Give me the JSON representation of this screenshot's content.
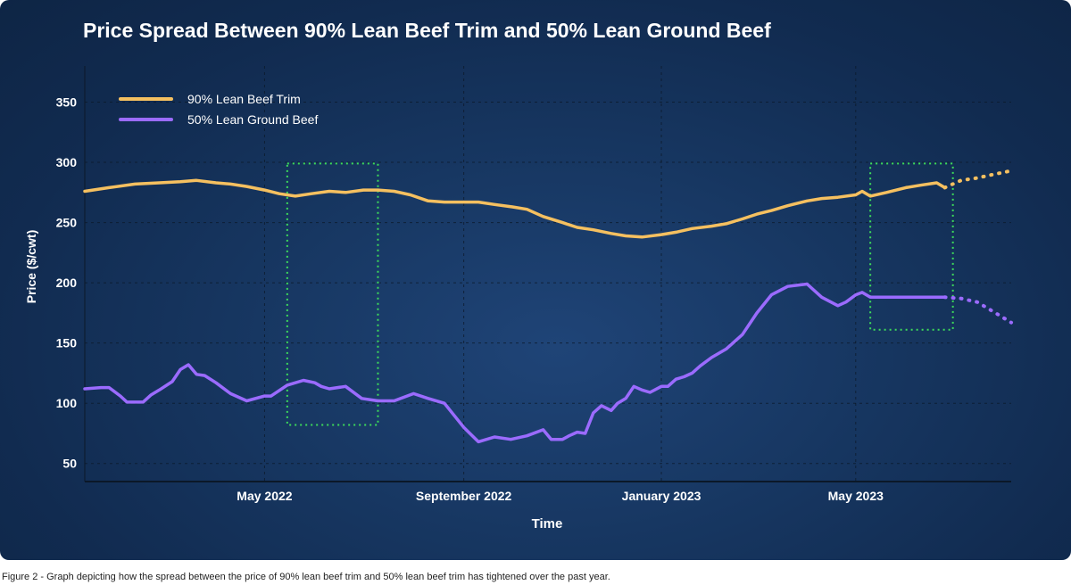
{
  "caption": "Figure 2 - Graph depicting how the spread between the price of 90% lean beef trim and 50% lean beef trim has tightened over the past year.",
  "colors": {
    "background": "#143159",
    "trim": "#f5c060",
    "ground": "#9b6bff",
    "highlight": "#3ddc5a",
    "grid": "#0d1a2c",
    "text": "#ffffff"
  },
  "chart_data": {
    "type": "line",
    "title": "Price Spread Between 90% Lean Beef Trim and 50% Lean Ground Beef",
    "xlabel": "Time",
    "ylabel": "Price ($/cwt)",
    "ylim": [
      35,
      380
    ],
    "yticks": [
      50,
      100,
      150,
      200,
      250,
      300,
      350
    ],
    "xlim": [
      "2022-01-10",
      "2023-08-05"
    ],
    "xticks": [
      {
        "date": "2022-05-01",
        "label": "May 2022"
      },
      {
        "date": "2022-09-01",
        "label": "September 2022"
      },
      {
        "date": "2023-01-01",
        "label": "January 2023"
      },
      {
        "date": "2023-05-01",
        "label": "May 2023"
      }
    ],
    "grid": true,
    "legend_position": "top-left",
    "series": [
      {
        "name": "90% Lean Beef Trim",
        "color": "#f5c060",
        "x": [
          "2022-01-10",
          "2022-01-25",
          "2022-02-10",
          "2022-02-25",
          "2022-03-10",
          "2022-03-20",
          "2022-04-01",
          "2022-04-10",
          "2022-04-20",
          "2022-05-01",
          "2022-05-10",
          "2022-05-20",
          "2022-05-30",
          "2022-06-10",
          "2022-06-20",
          "2022-07-01",
          "2022-07-10",
          "2022-07-20",
          "2022-07-30",
          "2022-08-10",
          "2022-08-20",
          "2022-08-30",
          "2022-09-10",
          "2022-09-20",
          "2022-10-01",
          "2022-10-10",
          "2022-10-20",
          "2022-11-01",
          "2022-11-10",
          "2022-11-20",
          "2022-12-01",
          "2022-12-10",
          "2022-12-20",
          "2023-01-01",
          "2023-01-10",
          "2023-01-20",
          "2023-02-01",
          "2023-02-10",
          "2023-02-20",
          "2023-03-01",
          "2023-03-10",
          "2023-03-20",
          "2023-04-01",
          "2023-04-10",
          "2023-04-20",
          "2023-05-01",
          "2023-05-05",
          "2023-05-10",
          "2023-05-20",
          "2023-06-01",
          "2023-06-10",
          "2023-06-20",
          "2023-06-25"
        ],
        "y": [
          276,
          279,
          282,
          283,
          284,
          285,
          283,
          282,
          280,
          277,
          274,
          272,
          274,
          276,
          275,
          277,
          277,
          276,
          273,
          268,
          267,
          267,
          267,
          265,
          263,
          261,
          255,
          250,
          246,
          244,
          241,
          239,
          238,
          240,
          242,
          245,
          247,
          249,
          253,
          257,
          260,
          264,
          268,
          270,
          271,
          273,
          276,
          272,
          275,
          279,
          281,
          283,
          279
        ]
      },
      {
        "name": "90% Lean Beef Trim (projected)",
        "color": "#f5c060",
        "dashed": true,
        "x": [
          "2023-06-25",
          "2023-07-05",
          "2023-07-15",
          "2023-07-25",
          "2023-08-05"
        ],
        "y": [
          279,
          285,
          287,
          290,
          293
        ]
      },
      {
        "name": "50% Lean Ground Beef",
        "color": "#9b6bff",
        "x": [
          "2022-01-10",
          "2022-01-20",
          "2022-01-25",
          "2022-02-01",
          "2022-02-05",
          "2022-02-15",
          "2022-02-20",
          "2022-02-25",
          "2022-03-05",
          "2022-03-10",
          "2022-03-15",
          "2022-03-20",
          "2022-03-25",
          "2022-04-01",
          "2022-04-10",
          "2022-04-20",
          "2022-05-01",
          "2022-05-05",
          "2022-05-15",
          "2022-05-25",
          "2022-06-01",
          "2022-06-05",
          "2022-06-10",
          "2022-06-20",
          "2022-06-30",
          "2022-07-10",
          "2022-07-20",
          "2022-08-01",
          "2022-08-10",
          "2022-08-20",
          "2022-09-01",
          "2022-09-10",
          "2022-09-20",
          "2022-09-30",
          "2022-10-10",
          "2022-10-20",
          "2022-10-25",
          "2022-11-01",
          "2022-11-05",
          "2022-11-10",
          "2022-11-15",
          "2022-11-20",
          "2022-11-25",
          "2022-12-01",
          "2022-12-05",
          "2022-12-10",
          "2022-12-15",
          "2022-12-20",
          "2022-12-25",
          "2023-01-01",
          "2023-01-05",
          "2023-01-10",
          "2023-01-15",
          "2023-01-20",
          "2023-01-25",
          "2023-02-01",
          "2023-02-10",
          "2023-02-20",
          "2023-03-01",
          "2023-03-10",
          "2023-03-20",
          "2023-04-01",
          "2023-04-10",
          "2023-04-20",
          "2023-04-25",
          "2023-05-01",
          "2023-05-05",
          "2023-05-10",
          "2023-05-20",
          "2023-06-01",
          "2023-06-10",
          "2023-06-20",
          "2023-06-25"
        ],
        "y": [
          112,
          113,
          113,
          106,
          101,
          101,
          107,
          111,
          118,
          128,
          132,
          124,
          123,
          117,
          108,
          102,
          106,
          106,
          115,
          119,
          117,
          114,
          112,
          114,
          104,
          102,
          102,
          108,
          104,
          100,
          80,
          68,
          72,
          70,
          73,
          78,
          70,
          70,
          73,
          76,
          75,
          92,
          98,
          94,
          100,
          104,
          114,
          111,
          109,
          114,
          114,
          120,
          122,
          125,
          131,
          138,
          145,
          157,
          175,
          190,
          197,
          199,
          188,
          181,
          184,
          190,
          192,
          188,
          188,
          188,
          188,
          188,
          188
        ]
      },
      {
        "name": "50% Lean Ground Beef (projected)",
        "color": "#9b6bff",
        "dashed": true,
        "x": [
          "2023-06-25",
          "2023-07-05",
          "2023-07-15",
          "2023-07-25",
          "2023-08-05"
        ],
        "y": [
          188,
          187,
          184,
          176,
          167
        ]
      }
    ],
    "annotations": [
      {
        "type": "dotted-box",
        "x0": "2022-05-15",
        "x1": "2022-07-10",
        "y0": 82,
        "y1": 299
      },
      {
        "type": "dotted-box",
        "x0": "2023-05-10",
        "x1": "2023-06-30",
        "y0": 161,
        "y1": 299
      }
    ]
  }
}
